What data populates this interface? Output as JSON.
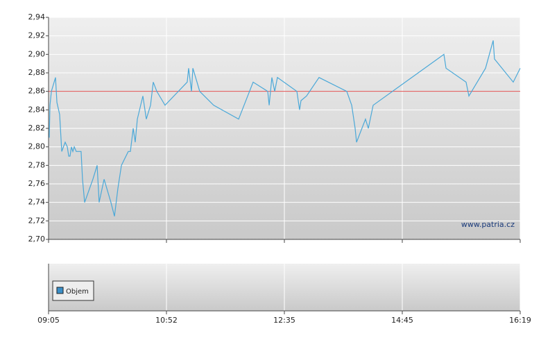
{
  "chart_data": {
    "type": "line",
    "x": [
      0.006,
      0.012,
      0.024,
      0.059,
      0.071,
      0.094,
      0.112,
      0.141,
      0.159,
      0.171,
      0.182,
      0.194,
      0.206,
      0.218,
      0.235,
      0.276,
      0.288,
      0.306,
      0.376,
      0.412,
      0.429,
      0.471,
      0.529,
      0.559,
      0.588,
      0.618,
      0.676,
      0.694,
      0.718,
      0.735,
      0.753,
      0.8,
      0.829,
      0.865,
      0.888,
      0.918,
      0.988,
      1.176,
      1.188,
      1.212,
      1.224,
      1.259,
      1.282,
      1.4,
      1.612,
      1.735,
      1.859,
      1.871,
      1.894,
      1.918,
      1.941,
      2.106,
      2.129,
      2.141,
      2.188,
      2.294,
      2.529,
      2.571,
      2.6,
      2.612,
      2.688,
      2.712,
      2.753,
      3.353,
      3.371,
      3.541,
      3.565,
      3.706,
      3.771,
      3.782,
      3.941,
      4
    ],
    "series": [
      {
        "color": "#4aa8d8",
        "values": [
          2.81,
          2.845,
          2.86,
          2.875,
          2.848,
          2.835,
          2.795,
          2.805,
          2.8,
          2.79,
          2.79,
          2.8,
          2.795,
          2.8,
          2.795,
          2.795,
          2.765,
          2.74,
          2.765,
          2.78,
          2.74,
          2.765,
          2.74,
          2.725,
          2.755,
          2.78,
          2.795,
          2.795,
          2.82,
          2.805,
          2.83,
          2.855,
          2.83,
          2.845,
          2.87,
          2.86,
          2.845,
          2.87,
          2.885,
          2.86,
          2.885,
          2.87,
          2.86,
          2.845,
          2.83,
          2.87,
          2.86,
          2.845,
          2.875,
          2.86,
          2.875,
          2.86,
          2.84,
          2.85,
          2.855,
          2.875,
          2.86,
          2.845,
          2.82,
          2.805,
          2.83,
          2.82,
          2.845,
          2.9,
          2.885,
          2.87,
          2.855,
          2.885,
          2.915,
          2.895,
          2.87,
          2.885
        ]
      }
    ],
    "reference_line": {
      "value": 2.86,
      "color": "#e05050"
    },
    "xlim": [
      0,
      4
    ],
    "xticks": [
      {
        "value": 0,
        "label": "09:05"
      },
      {
        "value": 1,
        "label": "10:52"
      },
      {
        "value": 2,
        "label": "12:35"
      },
      {
        "value": 3,
        "label": "14:45"
      },
      {
        "value": 4,
        "label": "16:19"
      }
    ],
    "ylim": [
      2.7,
      2.94
    ],
    "yticks": [
      {
        "value": 2.7,
        "label": "2,70"
      },
      {
        "value": 2.72,
        "label": "2,72"
      },
      {
        "value": 2.74,
        "label": "2,74"
      },
      {
        "value": 2.76,
        "label": "2,76"
      },
      {
        "value": 2.78,
        "label": "2,78"
      },
      {
        "value": 2.8,
        "label": "2,80"
      },
      {
        "value": 2.82,
        "label": "2,82"
      },
      {
        "value": 2.84,
        "label": "2,84"
      },
      {
        "value": 2.86,
        "label": "2,86"
      },
      {
        "value": 2.88,
        "label": "2,88"
      },
      {
        "value": 2.9,
        "label": "2,90"
      },
      {
        "value": 2.92,
        "label": "2,92"
      },
      {
        "value": 2.94,
        "label": "2,94"
      }
    ],
    "grid": true,
    "watermark": "www.patria.cz",
    "volume": {
      "name": "Objem",
      "color": "#3a8fc8"
    }
  }
}
